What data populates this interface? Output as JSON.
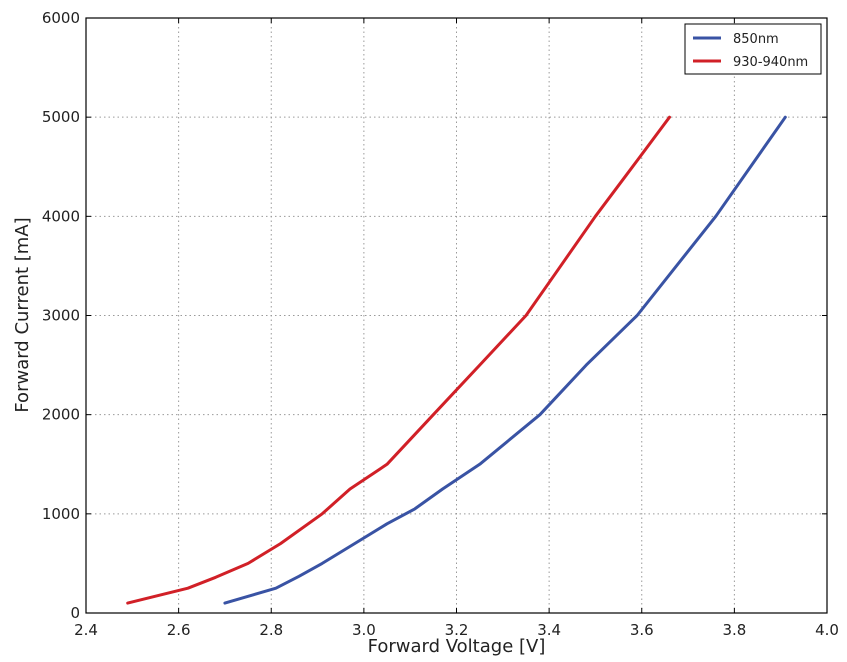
{
  "chart_data": {
    "type": "line",
    "title": "",
    "xlabel": "Forward Voltage [V]",
    "ylabel": "Forward Current [mA]",
    "xlim": [
      2.4,
      4.0
    ],
    "ylim": [
      0,
      6000
    ],
    "xticks": [
      "2.4",
      "2.6",
      "2.8",
      "3.0",
      "3.2",
      "3.4",
      "3.6",
      "3.8",
      "4.0"
    ],
    "yticks": [
      "0",
      "1000",
      "2000",
      "3000",
      "4000",
      "5000",
      "6000"
    ],
    "grid": true,
    "legend_position": "top-right",
    "series": [
      {
        "name": "850nm",
        "color": "#3953a4",
        "points": [
          [
            2.7,
            100
          ],
          [
            2.81,
            250
          ],
          [
            2.86,
            370
          ],
          [
            2.91,
            500
          ],
          [
            2.98,
            700
          ],
          [
            3.05,
            900
          ],
          [
            3.11,
            1050
          ],
          [
            3.17,
            1250
          ],
          [
            3.25,
            1500
          ],
          [
            3.38,
            2000
          ],
          [
            3.48,
            2500
          ],
          [
            3.59,
            3000
          ],
          [
            3.76,
            4000
          ],
          [
            3.91,
            5000
          ]
        ]
      },
      {
        "name": "930-940nm",
        "color": "#d12027",
        "points": [
          [
            2.49,
            100
          ],
          [
            2.62,
            250
          ],
          [
            2.68,
            360
          ],
          [
            2.75,
            500
          ],
          [
            2.82,
            700
          ],
          [
            2.91,
            1000
          ],
          [
            2.97,
            1250
          ],
          [
            3.05,
            1500
          ],
          [
            3.15,
            2000
          ],
          [
            3.25,
            2500
          ],
          [
            3.35,
            3000
          ],
          [
            3.41,
            3400
          ],
          [
            3.5,
            4000
          ],
          [
            3.58,
            4500
          ],
          [
            3.66,
            5000
          ]
        ]
      }
    ]
  }
}
